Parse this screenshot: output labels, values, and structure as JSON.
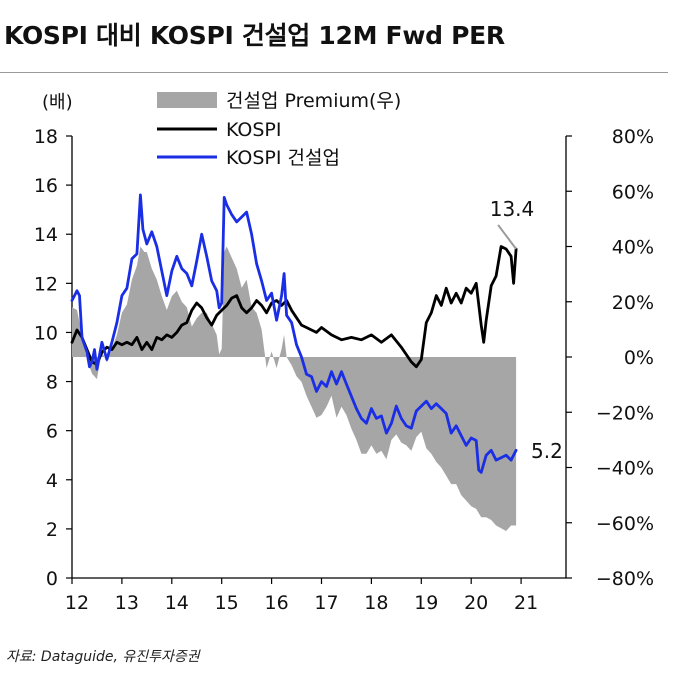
{
  "title": "KOSPI 대비 KOSPI 건설업 12M Fwd PER",
  "source": "자료: Dataguide, 유진투자증권",
  "chart_data": {
    "type": "line",
    "left_unit": "(배)",
    "left_ylim": [
      0,
      18
    ],
    "left_ticks": [
      "0",
      "2",
      "4",
      "6",
      "8",
      "10",
      "12",
      "14",
      "16",
      "18"
    ],
    "right_ylim": [
      -80,
      80
    ],
    "right_ticks": [
      "−80%",
      "−60%",
      "−40%",
      "−20%",
      "0%",
      "20%",
      "40%",
      "60%",
      "80%"
    ],
    "x_ticks": [
      "12",
      "13",
      "14",
      "15",
      "16",
      "17",
      "18",
      "19",
      "20",
      "21"
    ],
    "xlim": [
      2012.0,
      2022.0
    ],
    "annotations": {
      "kospi_last": "13.4",
      "construction_last": "5.2"
    },
    "colors": {
      "premium": "#a6a6a6",
      "kospi": "#000000",
      "construction": "#1a2ee6"
    },
    "series": [
      {
        "name": "KOSPI",
        "axis": "left",
        "points": [
          [
            2012.0,
            9.6
          ],
          [
            2012.1,
            10.1
          ],
          [
            2012.2,
            9.8
          ],
          [
            2012.3,
            9.3
          ],
          [
            2012.4,
            8.8
          ],
          [
            2012.5,
            8.7
          ],
          [
            2012.6,
            9.2
          ],
          [
            2012.7,
            9.4
          ],
          [
            2012.8,
            9.3
          ],
          [
            2012.9,
            9.6
          ],
          [
            2013.0,
            9.5
          ],
          [
            2013.1,
            9.6
          ],
          [
            2013.2,
            9.5
          ],
          [
            2013.3,
            9.8
          ],
          [
            2013.4,
            9.3
          ],
          [
            2013.5,
            9.6
          ],
          [
            2013.6,
            9.3
          ],
          [
            2013.7,
            9.8
          ],
          [
            2013.8,
            9.7
          ],
          [
            2013.9,
            9.9
          ],
          [
            2014.0,
            9.8
          ],
          [
            2014.1,
            10.0
          ],
          [
            2014.2,
            10.3
          ],
          [
            2014.3,
            10.4
          ],
          [
            2014.4,
            10.9
          ],
          [
            2014.5,
            11.2
          ],
          [
            2014.6,
            11.0
          ],
          [
            2014.7,
            10.6
          ],
          [
            2014.8,
            10.3
          ],
          [
            2014.9,
            10.7
          ],
          [
            2015.0,
            10.9
          ],
          [
            2015.1,
            11.1
          ],
          [
            2015.2,
            11.4
          ],
          [
            2015.3,
            11.5
          ],
          [
            2015.4,
            11.0
          ],
          [
            2015.5,
            10.8
          ],
          [
            2015.6,
            11.0
          ],
          [
            2015.7,
            11.3
          ],
          [
            2015.8,
            11.1
          ],
          [
            2015.9,
            10.8
          ],
          [
            2016.0,
            11.2
          ],
          [
            2016.1,
            11.3
          ],
          [
            2016.2,
            11.1
          ],
          [
            2016.3,
            11.3
          ],
          [
            2016.4,
            10.9
          ],
          [
            2016.5,
            10.6
          ],
          [
            2016.6,
            10.3
          ],
          [
            2016.7,
            10.2
          ],
          [
            2016.8,
            10.1
          ],
          [
            2016.9,
            10.0
          ],
          [
            2017.0,
            10.2
          ],
          [
            2017.2,
            9.9
          ],
          [
            2017.4,
            9.7
          ],
          [
            2017.6,
            9.8
          ],
          [
            2017.8,
            9.7
          ],
          [
            2018.0,
            9.9
          ],
          [
            2018.2,
            9.6
          ],
          [
            2018.4,
            9.9
          ],
          [
            2018.6,
            9.4
          ],
          [
            2018.8,
            8.8
          ],
          [
            2018.9,
            8.6
          ],
          [
            2019.0,
            8.9
          ],
          [
            2019.1,
            10.4
          ],
          [
            2019.2,
            10.8
          ],
          [
            2019.3,
            11.5
          ],
          [
            2019.4,
            11.1
          ],
          [
            2019.5,
            11.8
          ],
          [
            2019.6,
            11.2
          ],
          [
            2019.7,
            11.6
          ],
          [
            2019.8,
            11.2
          ],
          [
            2019.9,
            11.8
          ],
          [
            2020.0,
            11.6
          ],
          [
            2020.1,
            12.0
          ],
          [
            2020.2,
            10.3
          ],
          [
            2020.25,
            9.6
          ],
          [
            2020.3,
            10.5
          ],
          [
            2020.4,
            11.9
          ],
          [
            2020.5,
            12.3
          ],
          [
            2020.6,
            13.5
          ],
          [
            2020.7,
            13.4
          ],
          [
            2020.8,
            13.1
          ],
          [
            2020.85,
            12.0
          ],
          [
            2020.9,
            13.4
          ]
        ]
      },
      {
        "name": "KOSPI 건설업",
        "axis": "left",
        "points": [
          [
            2012.0,
            11.3
          ],
          [
            2012.1,
            11.7
          ],
          [
            2012.15,
            11.5
          ],
          [
            2012.2,
            9.8
          ],
          [
            2012.3,
            9.2
          ],
          [
            2012.35,
            8.6
          ],
          [
            2012.4,
            8.8
          ],
          [
            2012.45,
            9.3
          ],
          [
            2012.5,
            8.5
          ],
          [
            2012.6,
            9.6
          ],
          [
            2012.7,
            8.9
          ],
          [
            2012.8,
            9.6
          ],
          [
            2012.9,
            10.4
          ],
          [
            2013.0,
            11.5
          ],
          [
            2013.1,
            11.8
          ],
          [
            2013.2,
            13.0
          ],
          [
            2013.3,
            13.2
          ],
          [
            2013.37,
            15.6
          ],
          [
            2013.42,
            14.2
          ],
          [
            2013.5,
            13.6
          ],
          [
            2013.6,
            14.1
          ],
          [
            2013.7,
            13.5
          ],
          [
            2013.8,
            12.5
          ],
          [
            2013.9,
            11.5
          ],
          [
            2014.0,
            12.5
          ],
          [
            2014.1,
            13.1
          ],
          [
            2014.2,
            12.6
          ],
          [
            2014.3,
            12.4
          ],
          [
            2014.4,
            11.9
          ],
          [
            2014.5,
            12.9
          ],
          [
            2014.6,
            14.0
          ],
          [
            2014.7,
            13.1
          ],
          [
            2014.8,
            12.1
          ],
          [
            2014.9,
            11.7
          ],
          [
            2014.95,
            11.0
          ],
          [
            2015.0,
            11.2
          ],
          [
            2015.05,
            15.5
          ],
          [
            2015.1,
            15.2
          ],
          [
            2015.2,
            14.8
          ],
          [
            2015.3,
            14.5
          ],
          [
            2015.4,
            14.7
          ],
          [
            2015.5,
            14.9
          ],
          [
            2015.6,
            14.0
          ],
          [
            2015.7,
            12.8
          ],
          [
            2015.8,
            12.1
          ],
          [
            2015.9,
            11.3
          ],
          [
            2016.0,
            11.6
          ],
          [
            2016.1,
            10.5
          ],
          [
            2016.2,
            11.5
          ],
          [
            2016.25,
            12.4
          ],
          [
            2016.3,
            10.7
          ],
          [
            2016.4,
            10.4
          ],
          [
            2016.5,
            9.5
          ],
          [
            2016.6,
            9.0
          ],
          [
            2016.7,
            8.3
          ],
          [
            2016.8,
            8.2
          ],
          [
            2016.9,
            7.6
          ],
          [
            2017.0,
            8.0
          ],
          [
            2017.1,
            7.8
          ],
          [
            2017.2,
            8.4
          ],
          [
            2017.3,
            7.9
          ],
          [
            2017.4,
            8.4
          ],
          [
            2017.5,
            7.9
          ],
          [
            2017.6,
            7.4
          ],
          [
            2017.7,
            6.9
          ],
          [
            2017.8,
            6.5
          ],
          [
            2017.9,
            6.3
          ],
          [
            2018.0,
            6.9
          ],
          [
            2018.1,
            6.5
          ],
          [
            2018.2,
            6.6
          ],
          [
            2018.3,
            5.9
          ],
          [
            2018.4,
            6.3
          ],
          [
            2018.5,
            7.0
          ],
          [
            2018.6,
            6.5
          ],
          [
            2018.7,
            6.2
          ],
          [
            2018.8,
            6.1
          ],
          [
            2018.9,
            6.8
          ],
          [
            2019.0,
            7.0
          ],
          [
            2019.1,
            7.2
          ],
          [
            2019.2,
            6.9
          ],
          [
            2019.3,
            7.1
          ],
          [
            2019.4,
            6.9
          ],
          [
            2019.5,
            6.7
          ],
          [
            2019.6,
            5.9
          ],
          [
            2019.7,
            6.2
          ],
          [
            2019.8,
            5.8
          ],
          [
            2019.9,
            5.4
          ],
          [
            2020.0,
            5.7
          ],
          [
            2020.1,
            5.6
          ],
          [
            2020.15,
            4.4
          ],
          [
            2020.2,
            4.3
          ],
          [
            2020.3,
            5.0
          ],
          [
            2020.4,
            5.2
          ],
          [
            2020.5,
            4.8
          ],
          [
            2020.6,
            4.9
          ],
          [
            2020.7,
            5.0
          ],
          [
            2020.8,
            4.8
          ],
          [
            2020.9,
            5.2
          ]
        ]
      },
      {
        "name": "건설업 Premium(우)",
        "axis": "right",
        "points": [
          [
            2012.0,
            18
          ],
          [
            2012.1,
            17
          ],
          [
            2012.2,
            8
          ],
          [
            2012.3,
            -1
          ],
          [
            2012.4,
            -6
          ],
          [
            2012.5,
            -8
          ],
          [
            2012.6,
            2
          ],
          [
            2012.7,
            -2
          ],
          [
            2012.8,
            3
          ],
          [
            2012.9,
            8
          ],
          [
            2013.0,
            16
          ],
          [
            2013.1,
            19
          ],
          [
            2013.2,
            28
          ],
          [
            2013.3,
            33
          ],
          [
            2013.37,
            40
          ],
          [
            2013.45,
            38
          ],
          [
            2013.5,
            38
          ],
          [
            2013.6,
            32
          ],
          [
            2013.7,
            28
          ],
          [
            2013.8,
            22
          ],
          [
            2013.9,
            17
          ],
          [
            2014.0,
            22
          ],
          [
            2014.1,
            24
          ],
          [
            2014.2,
            20
          ],
          [
            2014.3,
            18
          ],
          [
            2014.4,
            11
          ],
          [
            2014.5,
            14
          ],
          [
            2014.6,
            16
          ],
          [
            2014.7,
            16
          ],
          [
            2014.8,
            12
          ],
          [
            2014.9,
            8
          ],
          [
            2014.95,
            1
          ],
          [
            2015.0,
            3
          ],
          [
            2015.05,
            38
          ],
          [
            2015.1,
            40
          ],
          [
            2015.2,
            36
          ],
          [
            2015.3,
            32
          ],
          [
            2015.4,
            25
          ],
          [
            2015.5,
            28
          ],
          [
            2015.6,
            18
          ],
          [
            2015.7,
            16
          ],
          [
            2015.8,
            10
          ],
          [
            2015.9,
            -4
          ],
          [
            2016.0,
            2
          ],
          [
            2016.1,
            -4
          ],
          [
            2016.2,
            3
          ],
          [
            2016.25,
            8
          ],
          [
            2016.3,
            0
          ],
          [
            2016.4,
            -3
          ],
          [
            2016.5,
            -7
          ],
          [
            2016.6,
            -9
          ],
          [
            2016.7,
            -14
          ],
          [
            2016.8,
            -18
          ],
          [
            2016.9,
            -22
          ],
          [
            2017.0,
            -21
          ],
          [
            2017.1,
            -18
          ],
          [
            2017.2,
            -14
          ],
          [
            2017.3,
            -22
          ],
          [
            2017.4,
            -18
          ],
          [
            2017.5,
            -21
          ],
          [
            2017.6,
            -26
          ],
          [
            2017.7,
            -30
          ],
          [
            2017.8,
            -35
          ],
          [
            2017.9,
            -35
          ],
          [
            2018.0,
            -32
          ],
          [
            2018.1,
            -35
          ],
          [
            2018.2,
            -34
          ],
          [
            2018.3,
            -37
          ],
          [
            2018.4,
            -30
          ],
          [
            2018.5,
            -28
          ],
          [
            2018.6,
            -31
          ],
          [
            2018.7,
            -32
          ],
          [
            2018.8,
            -34
          ],
          [
            2018.9,
            -29
          ],
          [
            2019.0,
            -27
          ],
          [
            2019.1,
            -33
          ],
          [
            2019.2,
            -35
          ],
          [
            2019.3,
            -38
          ],
          [
            2019.4,
            -40
          ],
          [
            2019.5,
            -43
          ],
          [
            2019.6,
            -46
          ],
          [
            2019.7,
            -46
          ],
          [
            2019.8,
            -50
          ],
          [
            2019.9,
            -52
          ],
          [
            2020.0,
            -54
          ],
          [
            2020.1,
            -55
          ],
          [
            2020.2,
            -58
          ],
          [
            2020.3,
            -58
          ],
          [
            2020.4,
            -59
          ],
          [
            2020.5,
            -61
          ],
          [
            2020.6,
            -62
          ],
          [
            2020.7,
            -63
          ],
          [
            2020.8,
            -61
          ],
          [
            2020.9,
            -61
          ]
        ]
      }
    ],
    "legend": {
      "position": "top-left",
      "order": [
        "건설업 Premium(우)",
        "KOSPI",
        "KOSPI 건설업"
      ]
    }
  }
}
